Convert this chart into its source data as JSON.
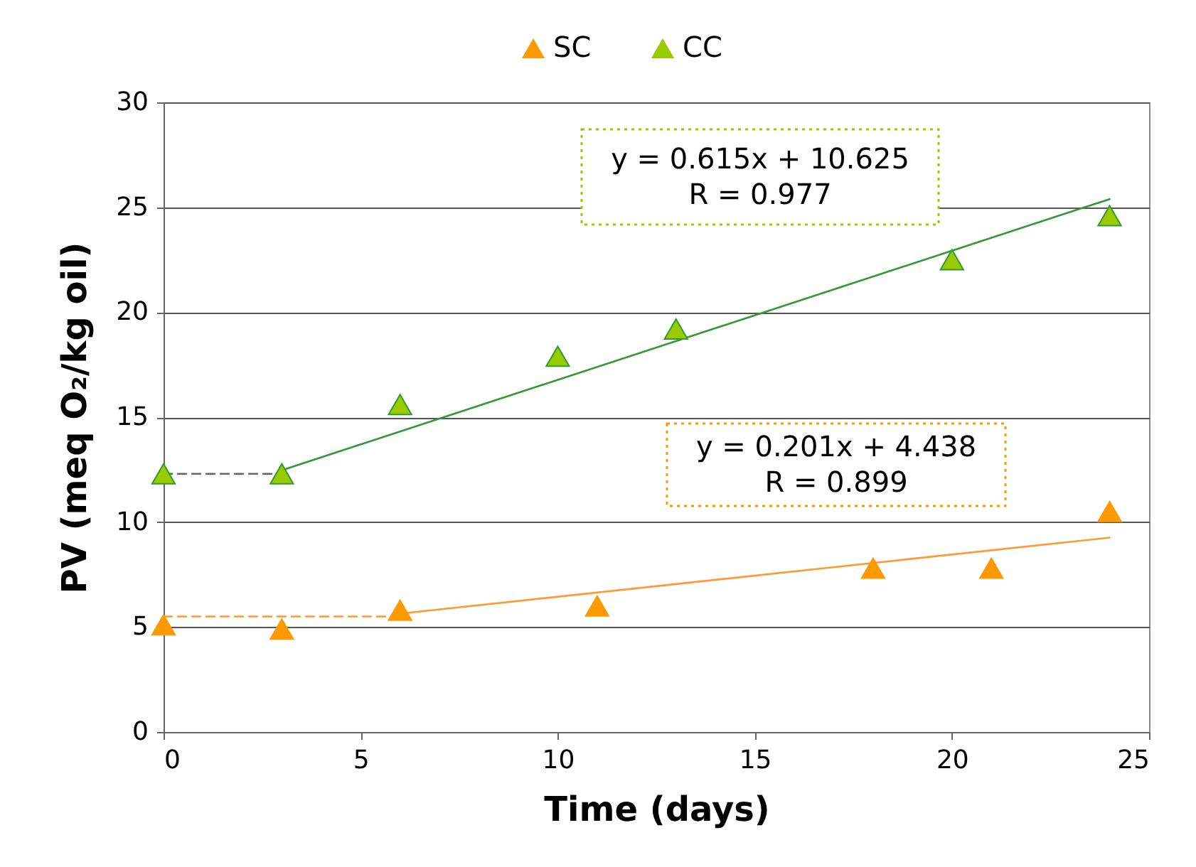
{
  "chart_data": {
    "type": "scatter",
    "xlabel": "Time (days)",
    "ylabel": "PV (meq O₂/kg oil)",
    "xlim": [
      0,
      25
    ],
    "xticks": [
      0,
      5,
      10,
      15,
      20,
      25
    ],
    "ylim": [
      0,
      30
    ],
    "yticks": [
      0,
      5,
      10,
      15,
      20,
      25,
      30
    ],
    "grid": "y",
    "legend": "top",
    "marker": "triangle",
    "series": [
      {
        "name": "SC",
        "color": "#ff9900",
        "x": [
          0,
          3,
          6,
          11,
          18,
          21,
          24
        ],
        "values": [
          5.1,
          4.9,
          5.8,
          6.0,
          7.8,
          7.8,
          10.5
        ]
      },
      {
        "name": "CC",
        "color": "#99cc00",
        "x": [
          0,
          3,
          6,
          10,
          13,
          20,
          24
        ],
        "values": [
          12.3,
          12.3,
          15.6,
          17.9,
          19.2,
          22.5,
          24.6
        ]
      },
      {
        "type": "line",
        "color": "#339933",
        "line_style": "solid",
        "marker": "none",
        "x": [
          3,
          24
        ],
        "values": [
          12.47,
          25.39
        ]
      },
      {
        "type": "line",
        "color": "#ff9933",
        "line_style": "solid",
        "marker": "none",
        "x": [
          6,
          24
        ],
        "values": [
          5.64,
          9.26
        ]
      },
      {
        "type": "line",
        "color": "#666666",
        "line_style": "dashed",
        "marker": "none",
        "x": [
          0,
          3
        ],
        "values": [
          12.3,
          12.3
        ]
      },
      {
        "type": "line",
        "color": "#ff9933",
        "line_style": "dashed",
        "marker": "none",
        "x": [
          0,
          6
        ],
        "values": [
          5.5,
          5.5
        ]
      }
    ],
    "annotations": [
      "y = 0.615x + 10.625\nR = 0.977",
      "y = 0.201x + 4.438\nR = 0.899"
    ]
  }
}
